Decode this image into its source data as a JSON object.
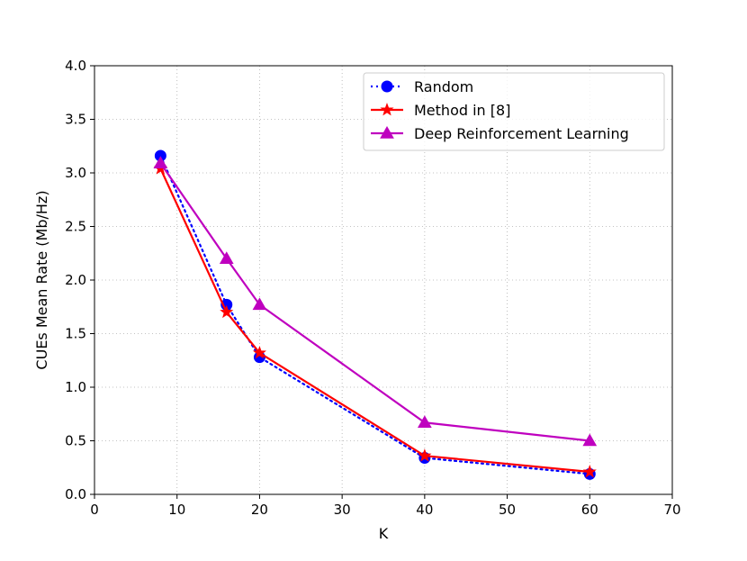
{
  "chart_data": {
    "type": "line",
    "xlabel": "K",
    "ylabel": "CUEs Mean Rate (Mb/Hz)",
    "xlim": [
      0,
      70
    ],
    "ylim": [
      0,
      4.0
    ],
    "x_ticks": [
      0,
      10,
      20,
      30,
      40,
      50,
      60,
      70
    ],
    "y_ticks": [
      0.0,
      0.5,
      1.0,
      1.5,
      2.0,
      2.5,
      3.0,
      3.5,
      4.0
    ],
    "x_tick_labels": [
      "0",
      "10",
      "20",
      "30",
      "40",
      "50",
      "60",
      "70"
    ],
    "y_tick_labels": [
      "0.0",
      "0.5",
      "1.0",
      "1.5",
      "2.0",
      "2.5",
      "3.0",
      "3.5",
      "4.0"
    ],
    "grid": true,
    "legend_position": "top-right",
    "x": [
      8,
      16,
      20,
      40,
      60
    ],
    "series": [
      {
        "name": "Random",
        "values": [
          3.16,
          1.77,
          1.28,
          0.34,
          0.19
        ],
        "color": "#0000ff",
        "line_style": "dotted",
        "marker": "circle"
      },
      {
        "name": "Method in [8]",
        "values": [
          3.04,
          1.7,
          1.32,
          0.36,
          0.21
        ],
        "color": "#ff0000",
        "line_style": "solid",
        "marker": "star"
      },
      {
        "name": "Deep Reinforcement Learning",
        "values": [
          3.09,
          2.2,
          1.77,
          0.67,
          0.5
        ],
        "color": "#bf00bf",
        "line_style": "solid",
        "marker": "triangle"
      }
    ]
  }
}
